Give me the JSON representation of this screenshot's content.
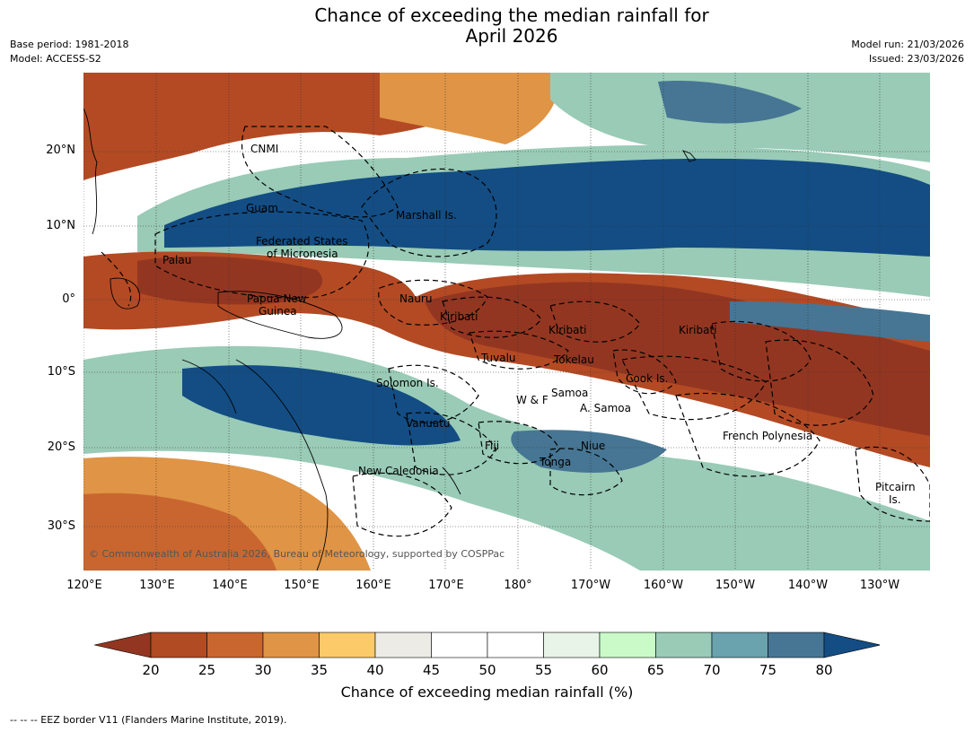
{
  "title_line1": "Chance of exceeding the median rainfall for",
  "title_line2": "April 2026",
  "base_period": "Base period: 1981-2018",
  "model": "Model: ACCESS-S2",
  "model_run": "Model run: 21/03/2026",
  "issued": "Issued: 23/03/2026",
  "copyright": "© Commonwealth of Australia 2026, Bureau of Meteorology, supported by COSPPac",
  "lat_labels": [
    "20°N",
    "10°N",
    "0°",
    "10°S",
    "20°S",
    "30°S"
  ],
  "lon_labels": [
    "120°E",
    "130°E",
    "140°E",
    "150°E",
    "160°E",
    "170°E",
    "180°",
    "170°W",
    "160°W",
    "150°W",
    "140°W",
    "130°W"
  ],
  "region_labels": {
    "cnmi": "CNMI",
    "guam": "Guam",
    "marshall": "Marshall Is.",
    "fsm_1": "Federated States",
    "fsm_2": "of Micronesia",
    "palau": "Palau",
    "png_1": "Papua New",
    "png_2": "Guinea",
    "nauru": "Nauru",
    "kiribati_w": "Kiribati",
    "kiribati_c": "Kiribati",
    "kiribati_e": "Kiribati",
    "tuvalu": "Tuvalu",
    "tokelau": "Tokelau",
    "cook": "Cook Is.",
    "solomon": "Solomon Is.",
    "samoa": "Samoa",
    "wf": "W & F",
    "asamoa": "A. Samoa",
    "vanuatu": "Vanuatu",
    "fiji": "Fiji",
    "niue": "Niue",
    "tonga": "Tonga",
    "newcal": "New Caledonia",
    "frpoly": "French Polynesia",
    "pitcairn_1": "Pitcairn",
    "pitcairn_2": "Is."
  },
  "colorbar": {
    "ticks": [
      "20",
      "25",
      "30",
      "35",
      "40",
      "45",
      "50",
      "55",
      "60",
      "65",
      "70",
      "75",
      "80"
    ],
    "colors": [
      "#933621",
      "#b04b24",
      "#c96630",
      "#e09445",
      "#fdca6a",
      "#ecebe6",
      "#ffffff",
      "#ffffff",
      "#e8f4e8",
      "#c9fac8",
      "#99cbb6",
      "#6aa2ae",
      "#467694",
      "#134d84"
    ],
    "label": "Chance of exceeding median rainfall (%)"
  },
  "footnote": "--  --  -- EEZ border V11 (Flanders Marine Institute, 2019)."
}
